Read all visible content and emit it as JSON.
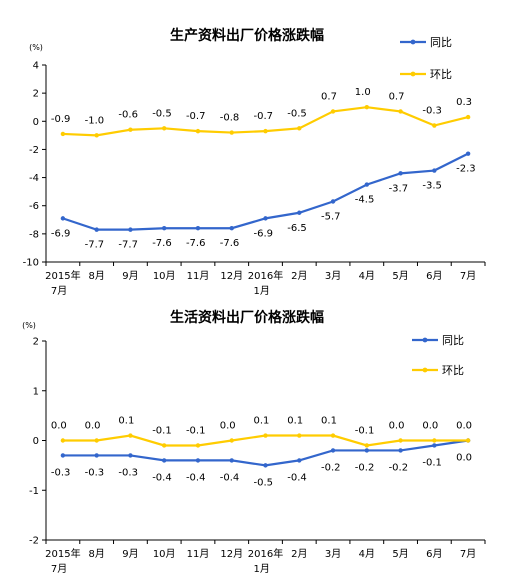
{
  "chart_data": [
    {
      "type": "line",
      "title": "生产资料出厂价格涨跌幅",
      "unit": "(%)",
      "categories": [
        [
          "2015年",
          "7月"
        ],
        [
          "8月"
        ],
        [
          "9月"
        ],
        [
          "10月"
        ],
        [
          "11月"
        ],
        [
          "12月"
        ],
        [
          "2016年",
          "1月"
        ],
        [
          "2月"
        ],
        [
          "3月"
        ],
        [
          "4月"
        ],
        [
          "5月"
        ],
        [
          "6月"
        ],
        [
          "7月"
        ]
      ],
      "ylim": [
        -10,
        4
      ],
      "yticks": [
        4,
        2,
        0,
        -2,
        -4,
        -6,
        -8,
        -10
      ],
      "legend_position": "top-right",
      "series": [
        {
          "name": "同比",
          "color": "#3366CC",
          "values": [
            -6.9,
            -7.7,
            -7.7,
            -7.6,
            -7.6,
            -7.6,
            -6.9,
            -6.5,
            -5.7,
            -4.5,
            -3.7,
            -3.5,
            -2.3
          ],
          "labels": [
            "-6.9",
            "-7.7",
            "-7.7",
            "-7.6",
            "-7.6",
            "-7.6",
            "-6.9",
            "-6.5",
            "-5.7",
            "-4.5",
            "-3.7",
            "-3.5",
            "-2.3"
          ]
        },
        {
          "name": "环比",
          "color": "#FFCC00",
          "values": [
            -0.9,
            -1.0,
            -0.6,
            -0.5,
            -0.7,
            -0.8,
            -0.7,
            -0.5,
            0.7,
            1.0,
            0.7,
            -0.3,
            0.3
          ],
          "labels": [
            "-0.9",
            "-1.0",
            "-0.6",
            "-0.5",
            "-0.7",
            "-0.8",
            "-0.7",
            "-0.5",
            "0.7",
            "1.0",
            "0.7",
            "-0.3",
            "0.3"
          ]
        }
      ]
    },
    {
      "type": "line",
      "title": "生活资料出厂价格涨跌幅",
      "unit": "(%)",
      "categories": [
        [
          "2015年",
          "7月"
        ],
        [
          "8月"
        ],
        [
          "9月"
        ],
        [
          "10月"
        ],
        [
          "11月"
        ],
        [
          "12月"
        ],
        [
          "2016年",
          "1月"
        ],
        [
          "2月"
        ],
        [
          "3月"
        ],
        [
          "4月"
        ],
        [
          "5月"
        ],
        [
          "6月"
        ],
        [
          "7月"
        ]
      ],
      "ylim": [
        -2,
        2
      ],
      "yticks": [
        2,
        1,
        0,
        -1,
        -2
      ],
      "legend_position": "top-right",
      "series": [
        {
          "name": "同比",
          "color": "#3366CC",
          "values": [
            -0.3,
            -0.3,
            -0.3,
            -0.4,
            -0.4,
            -0.4,
            -0.5,
            -0.4,
            -0.2,
            -0.2,
            -0.2,
            -0.1,
            0.0
          ],
          "labels": [
            "-0.3",
            "-0.3",
            "-0.3",
            "-0.4",
            "-0.4",
            "-0.4",
            "-0.5",
            "-0.4",
            "-0.2",
            "-0.2",
            "-0.2",
            "-0.1",
            "0.0"
          ]
        },
        {
          "name": "环比",
          "color": "#FFCC00",
          "values": [
            0.0,
            0.0,
            0.1,
            -0.1,
            -0.1,
            0.0,
            0.1,
            0.1,
            0.1,
            -0.1,
            0.0,
            0.0,
            0.0
          ],
          "labels": [
            "0.0",
            "0.0",
            "0.1",
            "-0.1",
            "-0.1",
            "0.0",
            "0.1",
            "0.1",
            "0.1",
            "-0.1",
            "0.0",
            "0.0",
            "0.0"
          ]
        }
      ]
    }
  ]
}
